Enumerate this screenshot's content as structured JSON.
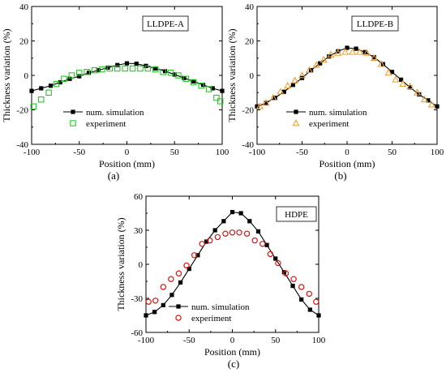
{
  "chart_data": [
    {
      "type": "line",
      "panel_label": "(a)",
      "legend_box": "LLDPE-A",
      "xlabel": "Position (mm)",
      "ylabel": "Thickness variation (%)",
      "xlim": [
        -100,
        100
      ],
      "ylim": [
        -40,
        40
      ],
      "xticks": [
        -100,
        -50,
        0,
        50,
        100
      ],
      "yticks": [
        -40,
        -20,
        0,
        20,
        40
      ],
      "x_tick_labels": [
        "-100",
        "-50",
        "0",
        "50",
        "100"
      ],
      "y_tick_labels": [
        "-40",
        "-20",
        "0",
        "20",
        "40"
      ],
      "legend_position": "bottom-center",
      "grid": false,
      "series": [
        {
          "name": "num. simulation",
          "marker": "filled-square",
          "color": "#000000",
          "x": [
            -100,
            -90,
            -80,
            -70,
            -60,
            -50,
            -40,
            -30,
            -20,
            -10,
            0,
            10,
            20,
            30,
            40,
            50,
            60,
            70,
            80,
            90,
            100
          ],
          "y": [
            -9,
            -7.5,
            -6,
            -4,
            -2,
            -0.5,
            1.5,
            3,
            4.5,
            6,
            7,
            6.8,
            5.5,
            4,
            2.5,
            0.5,
            -1.5,
            -3.5,
            -5.5,
            -7.5,
            -9
          ]
        },
        {
          "name": "experiment",
          "marker": "open-square",
          "color": "#22cc22",
          "x": [
            -98,
            -90,
            -82,
            -74,
            -66,
            -58,
            -50,
            -42,
            -34,
            -26,
            -18,
            -10,
            -2,
            6,
            14,
            22,
            30,
            38,
            46,
            54,
            62,
            70,
            78,
            86,
            94,
            98
          ],
          "y": [
            -18,
            -14,
            -10,
            -5,
            -2,
            0,
            1.5,
            2,
            3,
            3.5,
            4,
            4,
            4,
            4,
            4,
            4,
            3.5,
            2,
            1.5,
            0,
            -2,
            -4,
            -6,
            -8,
            -13,
            -15
          ]
        }
      ]
    },
    {
      "type": "line",
      "panel_label": "(b)",
      "legend_box": "LLDPE-B",
      "xlabel": "Position (mm)",
      "ylabel": "Thickness variation (%)",
      "xlim": [
        -100,
        100
      ],
      "ylim": [
        -40,
        40
      ],
      "xticks": [
        -100,
        -50,
        0,
        50,
        100
      ],
      "yticks": [
        -40,
        -20,
        0,
        20,
        40
      ],
      "x_tick_labels": [
        "-100",
        "-50",
        "0",
        "50",
        "100"
      ],
      "y_tick_labels": [
        "-40",
        "-20",
        "0",
        "20",
        "40"
      ],
      "legend_position": "bottom-center",
      "grid": false,
      "series": [
        {
          "name": "num. simulation",
          "marker": "filled-square",
          "color": "#000000",
          "x": [
            -100,
            -90,
            -80,
            -70,
            -60,
            -50,
            -40,
            -30,
            -20,
            -10,
            0,
            10,
            20,
            30,
            40,
            50,
            60,
            70,
            80,
            90,
            100
          ],
          "y": [
            -18,
            -16,
            -13,
            -9.5,
            -5.5,
            -1.5,
            3,
            7,
            11,
            14,
            16,
            15.5,
            13.5,
            10.5,
            6.5,
            2,
            -2.5,
            -7,
            -11,
            -14.5,
            -18
          ]
        },
        {
          "name": "experiment",
          "marker": "open-triangle",
          "color": "#f0a030",
          "x": [
            -97,
            -90,
            -82,
            -74,
            -66,
            -58,
            -50,
            -42,
            -34,
            -26,
            -18,
            -10,
            -2,
            6,
            14,
            22,
            30,
            38,
            46,
            54,
            62,
            70,
            78,
            86,
            94
          ],
          "y": [
            -18,
            -16,
            -13,
            -9.5,
            -6,
            -3,
            0,
            3,
            6,
            9,
            12,
            13,
            13.5,
            13.5,
            13.5,
            13,
            10,
            6.5,
            1.5,
            -2.5,
            -5,
            -6.5,
            -10,
            -14,
            -17
          ]
        }
      ]
    },
    {
      "type": "line",
      "panel_label": "(c)",
      "legend_box": "HDPE",
      "xlabel": "Position (mm)",
      "ylabel": "Thickness variation (%)",
      "xlim": [
        -100,
        100
      ],
      "ylim": [
        -60,
        60
      ],
      "xticks": [
        -100,
        -50,
        0,
        50,
        100
      ],
      "yticks": [
        -60,
        -30,
        0,
        30,
        60
      ],
      "x_tick_labels": [
        "-100",
        "-50",
        "0",
        "50",
        "100"
      ],
      "y_tick_labels": [
        "-60",
        "-30",
        "0",
        "30",
        "60"
      ],
      "legend_position": "bottom-left",
      "grid": false,
      "series": [
        {
          "name": "num. simulation",
          "marker": "filled-square",
          "color": "#000000",
          "x": [
            -100,
            -90,
            -80,
            -70,
            -60,
            -50,
            -40,
            -30,
            -20,
            -10,
            0,
            10,
            20,
            30,
            40,
            50,
            60,
            70,
            80,
            90,
            100
          ],
          "y": [
            -45,
            -42,
            -36,
            -27,
            -16,
            -4,
            8,
            20,
            30,
            38,
            46,
            45,
            38,
            29,
            17,
            5,
            -7,
            -19,
            -31,
            -40,
            -45
          ]
        },
        {
          "name": "experiment",
          "marker": "open-circle",
          "color": "#e01010",
          "x": [
            -97,
            -89,
            -80,
            -71,
            -62,
            -53,
            -44,
            -35,
            -26,
            -17,
            -8,
            0,
            8,
            17,
            26,
            35,
            44,
            53,
            62,
            71,
            80,
            89,
            97
          ],
          "y": [
            -33,
            -32,
            -20,
            -13,
            -8,
            -1,
            8,
            18,
            21,
            24,
            27,
            28,
            28,
            27,
            21,
            18,
            9,
            1,
            -8,
            -13,
            -20,
            -26,
            -33
          ]
        }
      ]
    }
  ]
}
